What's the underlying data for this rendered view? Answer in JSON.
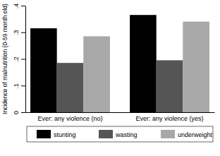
{
  "chart_data": {
    "type": "bar",
    "y_label": "Incidence of malnutrition (0-59 month old)",
    "categories": [
      "Ever: any violence (no)",
      "Ever: any violence (yes)"
    ],
    "series": [
      {
        "name": "stunting",
        "color": "#000000",
        "values": [
          0.315,
          0.365
        ]
      },
      {
        "name": "wasting",
        "color": "#555555",
        "values": [
          0.185,
          0.195
        ]
      },
      {
        "name": "underweight",
        "color": "#a8a8a8",
        "values": [
          0.285,
          0.34
        ]
      }
    ],
    "ylim": [
      0,
      0.4
    ],
    "yticks": [
      0,
      {
        "value": 0.1,
        "label": ".1"
      },
      {
        "value": 0.2,
        "label": ".2"
      },
      {
        "value": 0.3,
        "label": ".3"
      },
      {
        "value": 0.4,
        "label": ".4"
      }
    ],
    "grid": false,
    "legend": "bottom"
  }
}
